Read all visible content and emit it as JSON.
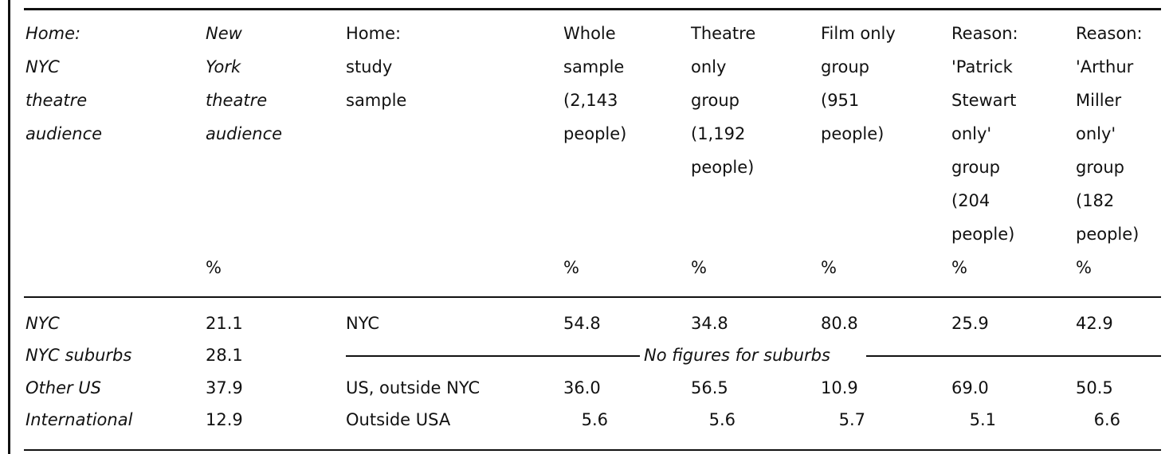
{
  "headers": [
    {
      "lines": [
        "Home:",
        "NYC",
        "theatre",
        "audience"
      ],
      "italic": true,
      "unit": ""
    },
    {
      "lines": [
        "New",
        "York",
        "theatre",
        "audience"
      ],
      "italic": true,
      "unit": "%"
    },
    {
      "lines": [
        "Home:",
        "study",
        "sample"
      ],
      "italic": false,
      "unit": ""
    },
    {
      "lines": [
        "Whole",
        "sample",
        "(2,143",
        "people)"
      ],
      "italic": false,
      "unit": "%"
    },
    {
      "lines": [
        "Theatre",
        "only",
        "group",
        "(1,192",
        "people)"
      ],
      "italic": false,
      "unit": "%"
    },
    {
      "lines": [
        "Film only",
        "group",
        "(951",
        "people)"
      ],
      "italic": false,
      "unit": "%"
    },
    {
      "lines": [
        "Reason:",
        "'Patrick",
        "Stewart",
        "only'",
        "group",
        "(204",
        "people)"
      ],
      "italic": false,
      "unit": "%"
    },
    {
      "lines": [
        "Reason:",
        "'Arthur",
        "Miller",
        "only'",
        "group",
        "(182",
        "people)"
      ],
      "italic": false,
      "unit": "%"
    }
  ],
  "rows": [
    {
      "nyc_label": "NYC",
      "nyc_pct": "21.1",
      "study_label": "NYC",
      "values": [
        "54.8",
        "34.8",
        "80.8",
        "25.9",
        "42.9"
      ]
    },
    {
      "nyc_label": "NYC suburbs",
      "nyc_pct": "28.1",
      "study_label": "",
      "values": []
    },
    {
      "nyc_label": "Other US",
      "nyc_pct": "37.9",
      "study_label": "US, outside NYC",
      "values": [
        "36.0",
        "56.5",
        "10.9",
        "69.0",
        "50.5"
      ]
    },
    {
      "nyc_label": "International",
      "nyc_pct": "12.9",
      "study_label": "Outside USA",
      "values": [
        "5.6",
        "5.6",
        "5.7",
        "5.1",
        "6.6"
      ]
    }
  ],
  "no_figures_note": "No figures for suburbs"
}
